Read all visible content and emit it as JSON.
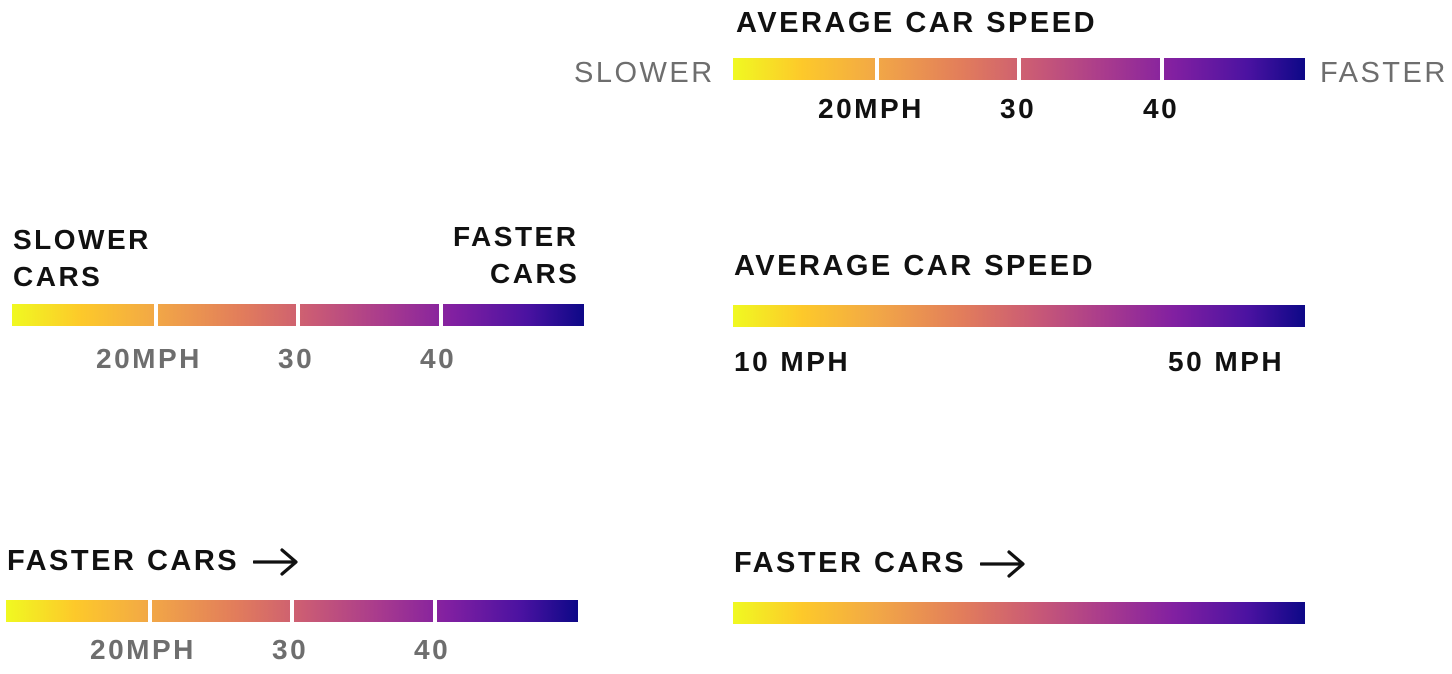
{
  "legend_a": {
    "title": "AVERAGE CAR SPEED",
    "left_label": "SLOWER",
    "right_label": "FASTER",
    "ticks": [
      {
        "label": "20MPH",
        "value": 20
      },
      {
        "label": "30",
        "value": 30
      },
      {
        "label": "40",
        "value": 40
      }
    ]
  },
  "legend_b": {
    "left_label_line1": "SLOWER",
    "left_label_line2": "CARS",
    "right_label_line1": "FASTER",
    "right_label_line2": "CARS",
    "ticks": [
      {
        "label": "20MPH",
        "value": 20
      },
      {
        "label": "30",
        "value": 30
      },
      {
        "label": "40",
        "value": 40
      }
    ]
  },
  "legend_c": {
    "title": "AVERAGE CAR SPEED",
    "min_label": "10 MPH",
    "max_label": "50 MPH"
  },
  "legend_d": {
    "title": "FASTER CARS",
    "ticks": [
      {
        "label": "20MPH",
        "value": 20
      },
      {
        "label": "30",
        "value": 30
      },
      {
        "label": "40",
        "value": 40
      }
    ]
  },
  "legend_e": {
    "title": "FASTER CARS"
  },
  "colors": {
    "gradient": [
      "#f0f921",
      "#fdc92a",
      "#f2a846",
      "#e27d5b",
      "#cb5c74",
      "#a93b8d",
      "#8220a1",
      "#4b12a1",
      "#0d0887"
    ],
    "dark_text": "#111111",
    "muted_text": "#6e6e6e"
  },
  "icons": {
    "arrow": "arrow-right-icon"
  }
}
